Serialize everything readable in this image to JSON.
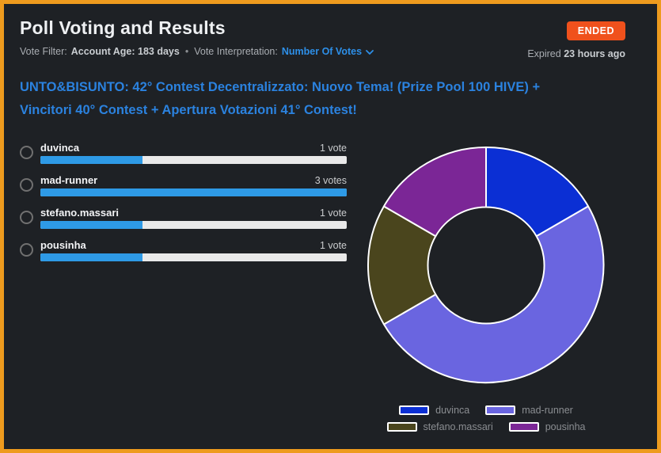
{
  "header": {
    "title": "Poll Voting and Results",
    "status_badge": "ENDED",
    "expired_prefix": "Expired",
    "expired_time": "23 hours ago",
    "filter": {
      "label": "Vote Filter:",
      "value": "Account Age: 183 days",
      "separator": "•",
      "interpretation_label": "Vote Interpretation:",
      "interpretation_value": "Number Of Votes"
    }
  },
  "question": "UNTO&BISUNTO: 42° Contest Decentralizzato: Nuovo Tema! (Prize Pool 100 HIVE) + Vincitori 40° Contest + Apertura Votazioni 41° Contest!",
  "poll": {
    "bar_color": "#2e9ae6",
    "track_color": "#e9e9e9",
    "options": [
      {
        "label": "duvinca",
        "votes": 1,
        "votes_label": "1 vote",
        "width": "33.3%"
      },
      {
        "label": "mad-runner",
        "votes": 3,
        "votes_label": "3 votes",
        "width": "100%"
      },
      {
        "label": "stefano.massari",
        "votes": 1,
        "votes_label": "1 vote",
        "width": "33.3%"
      },
      {
        "label": "pousinha",
        "votes": 1,
        "votes_label": "1 vote",
        "width": "33.3%"
      }
    ]
  },
  "chart_data": {
    "type": "pie",
    "subtype": "donut",
    "categories": [
      "duvinca",
      "mad-runner",
      "stefano.massari",
      "pousinha"
    ],
    "values": [
      1,
      3,
      1,
      1
    ],
    "colors": [
      "#0b2fd4",
      "#6a65e0",
      "#4a451d",
      "#7b2696"
    ],
    "start_angle": "top",
    "direction": "clockwise",
    "legend_position": "bottom",
    "segment_border_color": "#ffffff"
  },
  "colors": {
    "frame_border": "#ee9b1e",
    "background": "#1e2125",
    "badge_bg": "#f0511c",
    "link_blue": "#2d8fe8",
    "question_blue": "#2b82df",
    "bar_fill": "#2e9ae6"
  }
}
